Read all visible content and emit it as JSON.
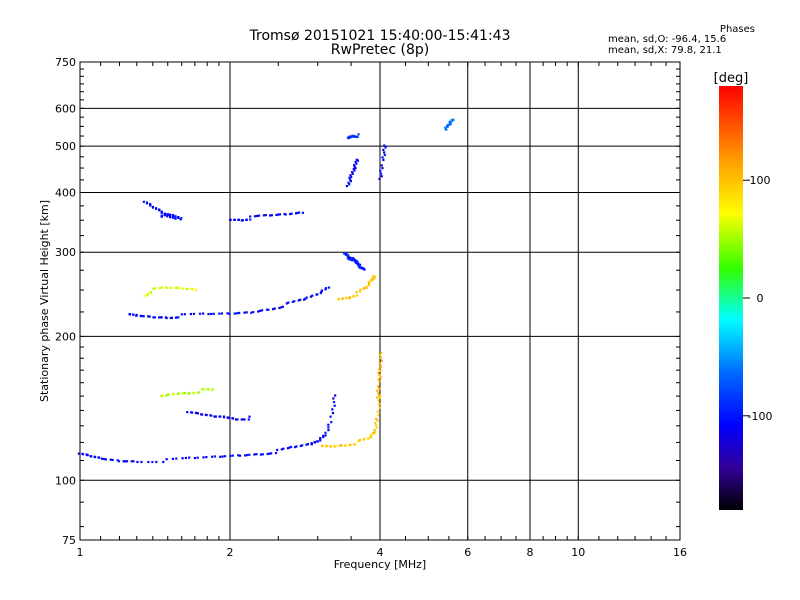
{
  "chart_data": {
    "type": "scatter",
    "title": "Tromsø 20151021 15:40:00-15:41:43",
    "subtitle": "RwPretec (8p)",
    "xlabel": "Frequency [MHz]",
    "ylabel": "Stationary phase Virtual Height [km]",
    "x_scale": "log",
    "y_scale": "log",
    "xlim": [
      1,
      16
    ],
    "ylim": [
      75,
      750
    ],
    "x_ticks": [
      1,
      2,
      4,
      6,
      8,
      10,
      16
    ],
    "y_ticks": [
      75,
      100,
      200,
      300,
      400,
      500,
      600,
      750
    ],
    "x_gridlines": [
      2,
      4,
      6,
      8,
      10
    ],
    "y_gridlines": [
      100,
      200,
      300,
      400,
      500,
      600
    ],
    "grid": true,
    "colorbar": {
      "label": "[deg]",
      "range": [
        -180,
        180
      ],
      "ticks": [
        100,
        0,
        -100
      ]
    },
    "annotations": {
      "heading": "Phases",
      "line_o": "mean, sd,O: -96.4, 15.6",
      "line_x": "mean, sd,X:  79.8, 21.1"
    },
    "traces": [
      {
        "x": [
          1.0,
          1.05,
          1.1,
          1.2,
          1.3,
          1.5,
          1.7,
          1.9,
          2.1,
          2.3,
          2.5,
          2.7,
          2.9,
          3.0,
          3.1,
          3.2,
          3.25
        ],
        "y": [
          113,
          112,
          111,
          110,
          110,
          110,
          111,
          112,
          113,
          114,
          115,
          117,
          119,
          121,
          125,
          135,
          150
        ],
        "phase": -100
      },
      {
        "x": [
          3.05,
          3.2,
          3.4,
          3.6,
          3.8,
          3.9,
          3.95,
          4.0
        ],
        "y": [
          118,
          118,
          119,
          120,
          122,
          126,
          135,
          150
        ],
        "phase": 95
      },
      {
        "x": [
          3.96,
          3.98,
          4.0,
          4.02
        ],
        "y": [
          150,
          160,
          170,
          185
        ],
        "phase": 110
      },
      {
        "x": [
          1.25,
          1.3,
          1.4,
          1.5,
          1.6,
          1.8,
          2.0,
          2.2,
          2.4,
          2.6,
          2.8,
          3.0,
          3.15
        ],
        "y": [
          222,
          221,
          220,
          220,
          221,
          222,
          223,
          225,
          229,
          233,
          238,
          245,
          254
        ],
        "phase": -100
      },
      {
        "x": [
          3.3,
          3.45,
          3.6,
          3.75,
          3.85,
          3.9
        ],
        "y": [
          240,
          242,
          246,
          252,
          262,
          268
        ],
        "phase": 98
      },
      {
        "x": [
          1.65,
          1.75,
          1.85,
          1.95,
          2.05,
          2.2
        ],
        "y": [
          138,
          137,
          136,
          136,
          135,
          135
        ],
        "phase": -105
      },
      {
        "x": [
          1.45,
          1.55,
          1.65,
          1.75,
          1.85
        ],
        "y": [
          150,
          152,
          153,
          154,
          154
        ],
        "phase": 50
      },
      {
        "x": [
          1.35,
          1.4,
          1.5,
          1.6,
          1.7
        ],
        "y": [
          245,
          250,
          252,
          252,
          251
        ],
        "phase": 60
      },
      {
        "x": [
          1.45,
          1.5,
          1.55,
          1.6
        ],
        "y": [
          355,
          360,
          358,
          354
        ],
        "phase": -100
      },
      {
        "x": [
          2.0,
          2.1,
          2.2,
          2.4,
          2.6,
          2.8
        ],
        "y": [
          352,
          352,
          354,
          357,
          360,
          364
        ],
        "phase": -100
      },
      {
        "x": [
          3.45,
          3.5,
          3.55,
          3.6
        ],
        "y": [
          410,
          430,
          450,
          470
        ],
        "phase": -100
      },
      {
        "x": [
          3.45,
          3.5,
          3.55,
          3.6
        ],
        "y": [
          520,
          525,
          528,
          526
        ],
        "phase": -80
      },
      {
        "x": [
          4.0,
          4.05,
          4.1
        ],
        "y": [
          430,
          465,
          500
        ],
        "phase": -100
      },
      {
        "x": [
          5.4,
          5.5,
          5.6
        ],
        "y": [
          540,
          555,
          570
        ],
        "phase": -60
      },
      {
        "x": [
          3.4,
          3.45,
          3.5,
          3.55,
          3.6,
          3.65,
          3.7
        ],
        "y": [
          300,
          295,
          290,
          288,
          285,
          280,
          278
        ],
        "phase": -90
      },
      {
        "x": [
          1.35,
          1.4,
          1.45,
          1.5,
          1.55
        ],
        "y": [
          380,
          372,
          365,
          358,
          355
        ],
        "phase": -100
      }
    ]
  }
}
